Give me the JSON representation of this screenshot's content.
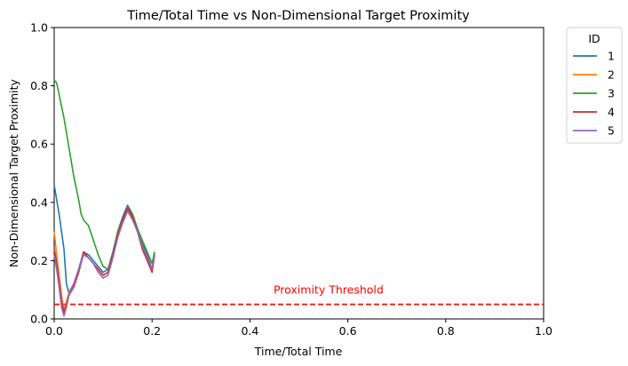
{
  "chart_data": {
    "type": "line",
    "title": "Time/Total Time vs Non-Dimensional Target Proximity",
    "xlabel": "Time/Total Time",
    "ylabel": "Non-Dimensional Target Proximity",
    "xlim": [
      0,
      1
    ],
    "ylim": [
      0,
      1
    ],
    "xticks": [
      0.0,
      0.2,
      0.4,
      0.6,
      0.8,
      1.0
    ],
    "yticks": [
      0.0,
      0.2,
      0.4,
      0.6,
      0.8,
      1.0
    ],
    "xtick_labels": [
      "0.0",
      "0.2",
      "0.4",
      "0.6",
      "0.8",
      "1.0"
    ],
    "ytick_labels": [
      "0.0",
      "0.2",
      "0.4",
      "0.6",
      "0.8",
      "1.0"
    ],
    "grid": false,
    "legend": {
      "title": "ID",
      "placement": "outside-top-right"
    },
    "threshold": {
      "value": 0.05,
      "label": "Proximity Threshold",
      "color": "#ff0000",
      "label_x": 0.47
    },
    "series": [
      {
        "name": "1",
        "color": "#1f77b4",
        "x": [
          0.0,
          0.01,
          0.02,
          0.025,
          0.03,
          0.04,
          0.05,
          0.06,
          0.07,
          0.08,
          0.09,
          0.1,
          0.11,
          0.12,
          0.13,
          0.14,
          0.15,
          0.16,
          0.17,
          0.18,
          0.19,
          0.2,
          0.205
        ],
        "y": [
          0.46,
          0.36,
          0.24,
          0.12,
          0.09,
          0.12,
          0.17,
          0.23,
          0.22,
          0.2,
          0.18,
          0.16,
          0.17,
          0.23,
          0.3,
          0.35,
          0.39,
          0.36,
          0.31,
          0.26,
          0.22,
          0.17,
          0.23
        ]
      },
      {
        "name": "2",
        "color": "#ff7f0e",
        "x": [
          0.0,
          0.005,
          0.01,
          0.015,
          0.02,
          0.025,
          0.03,
          0.04,
          0.05,
          0.06,
          0.07,
          0.08,
          0.09,
          0.1,
          0.11,
          0.12,
          0.13,
          0.14,
          0.15,
          0.16,
          0.17,
          0.18,
          0.19,
          0.2,
          0.205
        ],
        "y": [
          0.3,
          0.22,
          0.15,
          0.08,
          0.03,
          0.06,
          0.09,
          0.11,
          0.16,
          0.22,
          0.21,
          0.19,
          0.17,
          0.15,
          0.16,
          0.22,
          0.29,
          0.33,
          0.37,
          0.35,
          0.3,
          0.25,
          0.21,
          0.16,
          0.22
        ]
      },
      {
        "name": "3",
        "color": "#2ca02c",
        "x": [
          0.0,
          0.005,
          0.01,
          0.02,
          0.03,
          0.04,
          0.05,
          0.055,
          0.06,
          0.07,
          0.08,
          0.09,
          0.1,
          0.11,
          0.12,
          0.13,
          0.14,
          0.15,
          0.16,
          0.17,
          0.18,
          0.19,
          0.2,
          0.205
        ],
        "y": [
          0.82,
          0.81,
          0.77,
          0.69,
          0.59,
          0.49,
          0.41,
          0.36,
          0.34,
          0.32,
          0.27,
          0.22,
          0.18,
          0.17,
          0.22,
          0.3,
          0.34,
          0.38,
          0.36,
          0.31,
          0.27,
          0.23,
          0.19,
          0.23
        ]
      },
      {
        "name": "4",
        "color": "#d62728",
        "x": [
          0.0,
          0.005,
          0.01,
          0.015,
          0.02,
          0.025,
          0.03,
          0.04,
          0.05,
          0.06,
          0.07,
          0.08,
          0.09,
          0.1,
          0.11,
          0.12,
          0.13,
          0.14,
          0.15,
          0.16,
          0.17,
          0.18,
          0.19,
          0.2,
          0.205
        ],
        "y": [
          0.24,
          0.19,
          0.13,
          0.06,
          0.02,
          0.05,
          0.08,
          0.11,
          0.16,
          0.23,
          0.21,
          0.19,
          0.17,
          0.15,
          0.16,
          0.22,
          0.29,
          0.34,
          0.38,
          0.35,
          0.3,
          0.24,
          0.2,
          0.16,
          0.22
        ]
      },
      {
        "name": "5",
        "color": "#9467bd",
        "x": [
          0.0,
          0.005,
          0.01,
          0.015,
          0.02,
          0.025,
          0.03,
          0.04,
          0.05,
          0.06,
          0.07,
          0.08,
          0.09,
          0.1,
          0.11,
          0.12,
          0.13,
          0.14,
          0.15,
          0.16,
          0.17,
          0.18,
          0.19,
          0.2,
          0.205
        ],
        "y": [
          0.22,
          0.17,
          0.11,
          0.04,
          0.01,
          0.04,
          0.08,
          0.12,
          0.17,
          0.22,
          0.21,
          0.19,
          0.16,
          0.14,
          0.15,
          0.21,
          0.28,
          0.33,
          0.37,
          0.34,
          0.3,
          0.25,
          0.21,
          0.17,
          0.22
        ]
      }
    ]
  }
}
